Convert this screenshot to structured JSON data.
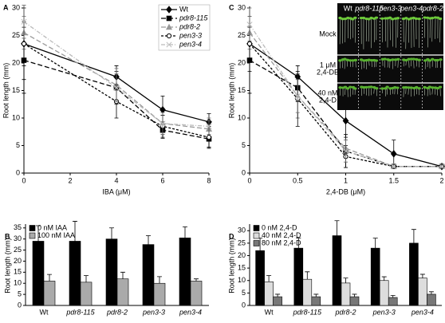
{
  "chart_data": [
    {
      "type": "line",
      "panel_label": "A",
      "ylabel": "Root length (mm)",
      "xlabel": "IBA (μM)",
      "x": [
        0,
        4,
        6,
        8
      ],
      "xlim": [
        0,
        8
      ],
      "xticks": [
        0,
        2,
        4,
        6,
        8
      ],
      "ylim": [
        0,
        30
      ],
      "yticks": [
        0,
        5,
        10,
        15,
        20,
        25,
        30
      ],
      "legend": "upper right",
      "series": [
        {
          "name": "Wt",
          "color": "#000000",
          "marker": "diamond",
          "dash": "solid",
          "values": [
            23.5,
            17.5,
            11.5,
            9.3
          ],
          "errors": [
            6.5,
            2,
            2.5,
            1.5
          ]
        },
        {
          "name": "pdr8-115",
          "color": "#000000",
          "marker": "square",
          "dash": "dashed",
          "values": [
            20.5,
            15.5,
            7.8,
            6.2
          ],
          "errors": [
            6,
            3,
            1.5,
            1.5
          ]
        },
        {
          "name": "pdr8-2",
          "color": "#999999",
          "marker": "triangle",
          "dash": "dashed",
          "values": [
            25.5,
            16,
            9,
            8
          ],
          "errors": [
            3,
            3,
            2,
            1.5
          ]
        },
        {
          "name": "pen3-3",
          "color": "#000000",
          "marker": "circle",
          "dash": "short-dashed",
          "values": [
            23.5,
            13,
            8.5,
            6.5
          ],
          "errors": [
            4,
            3,
            2,
            2
          ]
        },
        {
          "name": "pen3-4",
          "color": "#bbbbbb",
          "marker": "x",
          "dash": "dash-dot",
          "values": [
            27.5,
            15.5,
            9,
            8.5
          ],
          "errors": [
            3,
            2.5,
            2,
            1.5
          ]
        }
      ]
    },
    {
      "type": "bar",
      "panel_label": "B",
      "ylabel": "Root length (mm)",
      "categories": [
        "Wt",
        "pdr8-115",
        "pdr8-2",
        "pen3-3",
        "pen3-4"
      ],
      "ylim": [
        0,
        36
      ],
      "yticks": [
        0,
        5,
        10,
        15,
        20,
        25,
        30,
        35
      ],
      "legend": "upper left",
      "series": [
        {
          "name": "0 nM IAA",
          "color": "#000000",
          "values": [
            29,
            29,
            30,
            27.5,
            30.5
          ],
          "errors": [
            7,
            9,
            5,
            4,
            5
          ]
        },
        {
          "name": "100 nM IAA",
          "color": "#aaaaaa",
          "values": [
            11,
            10.5,
            12,
            10,
            11
          ],
          "errors": [
            3,
            3,
            3,
            3,
            1
          ]
        }
      ]
    },
    {
      "type": "line",
      "panel_label": "C",
      "ylabel": "Root length (mm)",
      "xlabel": "2,4-DB (μM)",
      "x": [
        0,
        0.5,
        1,
        1.5,
        2
      ],
      "xlim": [
        0,
        2
      ],
      "xticks": [
        0,
        0.5,
        1,
        1.5,
        2
      ],
      "ylim": [
        0,
        30
      ],
      "yticks": [
        0,
        5,
        10,
        15,
        20,
        25,
        30
      ],
      "series": [
        {
          "name": "Wt",
          "color": "#000000",
          "marker": "diamond",
          "dash": "solid",
          "values": [
            23.5,
            17.5,
            9.5,
            3.5,
            1.2
          ],
          "errors": [
            5,
            2,
            3,
            2.5,
            0.3
          ]
        },
        {
          "name": "pdr8-115",
          "color": "#000000",
          "marker": "square",
          "dash": "dashed",
          "values": [
            20.5,
            15.5,
            4,
            1.2,
            1.2
          ],
          "errors": [
            6,
            2.5,
            3,
            0.3,
            0.2
          ]
        },
        {
          "name": "pdr8-2",
          "color": "#999999",
          "marker": "triangle",
          "dash": "dashed",
          "values": [
            25.5,
            14,
            4.5,
            1.2,
            1.2
          ],
          "errors": [
            3,
            4,
            1.5,
            0.3,
            0.2
          ]
        },
        {
          "name": "pen3-3",
          "color": "#000000",
          "marker": "circle",
          "dash": "short-dashed",
          "values": [
            23.5,
            13.5,
            3,
            1.2,
            1.2
          ],
          "errors": [
            3,
            5,
            2,
            0.3,
            0.2
          ]
        },
        {
          "name": "pen3-4",
          "color": "#bbbbbb",
          "marker": "x",
          "dash": "dash-dot",
          "values": [
            27,
            14,
            4,
            1.2,
            1.2
          ],
          "errors": [
            3,
            3,
            2,
            0.3,
            0.2
          ]
        }
      ],
      "inset": {
        "columns": [
          "Wt",
          "pdr8-115",
          "pen3-3",
          "pen3-4",
          "pdr8-2"
        ],
        "rows": [
          [
            "Mock"
          ],
          [
            "1 μM",
            "2,4-DB"
          ],
          [
            "40 nM",
            "2,4-D"
          ]
        ]
      }
    },
    {
      "type": "bar",
      "panel_label": "D",
      "ylabel": "Root length (mm)",
      "categories": [
        "Wt",
        "pdr8-115",
        "pdr8-2",
        "pen3-3",
        "pen3-4"
      ],
      "ylim": [
        0,
        32
      ],
      "yticks": [
        0,
        5,
        10,
        15,
        20,
        25,
        30
      ],
      "legend": "upper left",
      "series": [
        {
          "name": "0 nM 2,4-D",
          "color": "#000000",
          "values": [
            22,
            23,
            28,
            23,
            25
          ],
          "errors": [
            5,
            4,
            6,
            4,
            5.5
          ]
        },
        {
          "name": "40 nM 2,4-D",
          "color": "#dddddd",
          "values": [
            9.5,
            10.5,
            9,
            10,
            11
          ],
          "errors": [
            2.5,
            3,
            2,
            1.5,
            1.5
          ]
        },
        {
          "name": "80 nM 2,4-D",
          "color": "#777777",
          "values": [
            3.5,
            3.5,
            3.5,
            3.2,
            4.5
          ],
          "errors": [
            1,
            1,
            1,
            0.8,
            1
          ]
        }
      ]
    }
  ]
}
